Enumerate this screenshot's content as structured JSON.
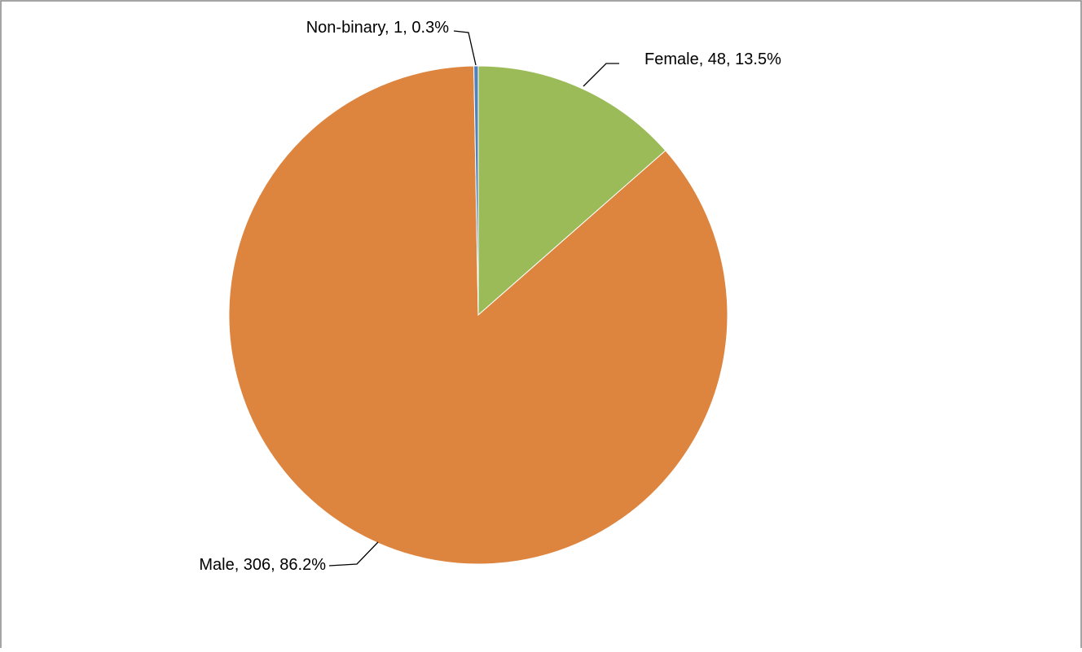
{
  "chart_data": {
    "type": "pie",
    "title": "",
    "slices": [
      {
        "label": "Female",
        "value": 48,
        "percent": "13.5%",
        "color": "#9BBB59",
        "data_label": "Female, 48, 13.5%"
      },
      {
        "label": "Male",
        "value": 306,
        "percent": "86.2%",
        "color": "#DD843F",
        "data_label": "Male, 306, 86.2%"
      },
      {
        "label": "Non-binary",
        "value": 1,
        "percent": "0.3%",
        "color": "#4F81BD",
        "data_label": "Non-binary, 1, 0.3%"
      }
    ],
    "start_angle": "12 o'clock",
    "direction": "clockwise",
    "legend": "none",
    "border_color": "#868686"
  }
}
